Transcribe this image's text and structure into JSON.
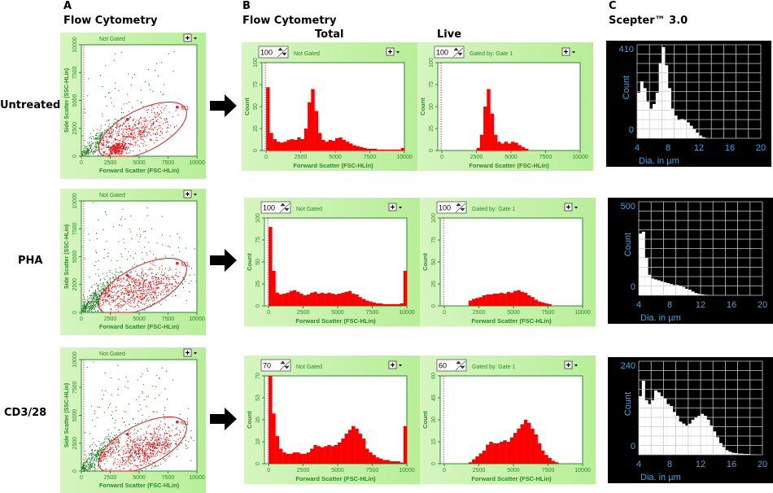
{
  "panel_labels": {
    "a": "A",
    "b": "B",
    "c": "C"
  },
  "headings": {
    "a": "Flow Cytometry",
    "b": "Flow Cytometry",
    "total": "Total",
    "live": "Live",
    "c": "Scepter™ 3.0"
  },
  "rows": [
    "Untreated",
    "PHA",
    "CD3/28"
  ],
  "colors": {
    "gated": "#e01010",
    "ungated": "#1a7a1a",
    "histogram": "#ff0000",
    "panel_bg": "#c8f2aa",
    "axis_text": "#2a8a2a",
    "scepter_text": "#3aa8e0",
    "scepter_bg": "#000000"
  },
  "chart_data": [
    {
      "type": "scatter",
      "row": "Untreated",
      "header": "Not Gated",
      "xlabel": "Forward Scatter (FSC-HLin)",
      "ylabel": "Side Scatter (SSC-HLin)",
      "xlim": [
        0,
        10000
      ],
      "ylim": [
        0,
        10000
      ],
      "xticks": [
        "0",
        "2500",
        "5000",
        "7500",
        "10000"
      ],
      "yticks": [
        "0",
        "2500",
        "5000",
        "7500",
        "10000"
      ],
      "gate": {
        "label": "M1",
        "cx": 5300,
        "cy": 2300,
        "rx": 4200,
        "ry": 1850,
        "angle_deg": 28
      },
      "clusters": [
        {
          "cx": 300,
          "cy": 300,
          "sx": 300,
          "sy": 250,
          "corr": 0.3,
          "n": 70
        },
        {
          "cx": 1400,
          "cy": 1300,
          "sx": 1000,
          "sy": 1000,
          "corr": 0.85,
          "n": 260
        },
        {
          "cx": 4000,
          "cy": 4500,
          "sx": 2500,
          "sy": 2500,
          "corr": 0.3,
          "n": 90
        },
        {
          "cx": 3000,
          "cy": 700,
          "sx": 500,
          "sy": 300,
          "corr": 0.4,
          "n": 320
        },
        {
          "cx": 4800,
          "cy": 2200,
          "sx": 1500,
          "sy": 900,
          "corr": 0.6,
          "n": 380
        }
      ]
    },
    {
      "type": "bar",
      "row": "Untreated",
      "column": "Total",
      "spin_value": "100",
      "header": "Not Gated",
      "xlabel": "Forward Scatter (FSC-HLin)",
      "ylabel": "Count",
      "xlim": [
        0,
        10000
      ],
      "ylim": [
        0,
        100
      ],
      "bin_width": 250,
      "xticks": [
        "0",
        "2500",
        "5000",
        "7500",
        "10000"
      ],
      "yticks": [
        "0",
        "25",
        "50",
        "75",
        "100"
      ],
      "values": [
        72,
        20,
        13,
        10,
        9,
        10,
        12,
        13,
        12,
        15,
        13,
        25,
        55,
        70,
        45,
        20,
        12,
        10,
        12,
        11,
        14,
        15,
        12,
        10,
        8,
        6,
        5,
        4,
        3,
        2,
        2,
        2,
        1,
        1,
        1,
        1,
        1,
        1,
        1,
        3
      ]
    },
    {
      "type": "bar",
      "row": "Untreated",
      "column": "Live",
      "spin_value": "100",
      "header": "Gated by: Gate 1",
      "xlabel": "Forward Scatter (FSC-HLin)",
      "ylabel": "Count",
      "xlim": [
        0,
        10000
      ],
      "ylim": [
        0,
        100
      ],
      "bin_width": 250,
      "xticks": [
        "0",
        "2500",
        "5000",
        "7500",
        "10000"
      ],
      "yticks": [
        "0",
        "25",
        "50",
        "75",
        "100"
      ],
      "values": [
        0,
        0,
        0,
        0,
        0,
        0,
        0,
        0,
        0,
        0,
        3,
        18,
        50,
        70,
        42,
        18,
        10,
        8,
        10,
        8,
        10,
        9,
        6,
        4,
        2,
        0,
        0,
        0,
        0,
        0,
        0,
        0,
        0,
        0,
        0,
        0,
        0,
        0,
        0,
        0
      ]
    },
    {
      "type": "bar",
      "row": "Untreated",
      "xlabel": "Dia. in µm",
      "ylabel": "Count",
      "xlim": [
        4,
        20
      ],
      "ylim": [
        0,
        410
      ],
      "bin_width": 0.4,
      "xticks": [
        "4",
        "8",
        "12",
        "16",
        "20"
      ],
      "yticks": [
        "0",
        "410"
      ],
      "values": [
        200,
        250,
        220,
        160,
        130,
        150,
        200,
        330,
        400,
        320,
        220,
        130,
        100,
        80,
        85,
        80,
        70,
        55,
        40,
        25,
        12,
        5,
        2,
        0,
        0,
        0,
        0,
        0,
        0,
        0,
        0,
        0,
        0,
        0,
        0,
        0,
        0,
        0,
        0,
        0
      ]
    },
    {
      "type": "scatter",
      "row": "PHA",
      "header": "Not Gated",
      "xlabel": "Forward Scatter (FSC-HLin)",
      "ylabel": "Side Scatter (SSC-HLin)",
      "xlim": [
        0,
        10000
      ],
      "ylim": [
        0,
        10000
      ],
      "xticks": [
        "0",
        "2500",
        "5000",
        "7500",
        "10000"
      ],
      "yticks": [
        "0",
        "2500",
        "5000",
        "7500",
        "10000"
      ],
      "gate": {
        "label": "M1",
        "cx": 5300,
        "cy": 2300,
        "rx": 4200,
        "ry": 1850,
        "angle_deg": 28
      },
      "clusters": [
        {
          "cx": 400,
          "cy": 400,
          "sx": 400,
          "sy": 350,
          "corr": 0.3,
          "n": 90
        },
        {
          "cx": 1300,
          "cy": 1300,
          "sx": 1000,
          "sy": 1000,
          "corr": 0.85,
          "n": 380
        },
        {
          "cx": 3500,
          "cy": 5000,
          "sx": 2800,
          "sy": 2800,
          "corr": 0.3,
          "n": 160
        },
        {
          "cx": 5000,
          "cy": 2000,
          "sx": 1800,
          "sy": 1000,
          "corr": 0.55,
          "n": 650
        }
      ]
    },
    {
      "type": "bar",
      "row": "PHA",
      "column": "Total",
      "spin_value": "100",
      "header": "Not Gated",
      "xlabel": "Forward Scatter (FSC-HLin)",
      "ylabel": "Count",
      "xlim": [
        0,
        10000
      ],
      "ylim": [
        0,
        100
      ],
      "bin_width": 250,
      "xticks": [
        "0",
        "2500",
        "5000",
        "7500",
        "10000"
      ],
      "yticks": [
        "0",
        "25",
        "50",
        "75",
        "100"
      ],
      "values": [
        90,
        40,
        15,
        13,
        14,
        15,
        17,
        18,
        16,
        14,
        12,
        13,
        15,
        16,
        14,
        15,
        14,
        15,
        14,
        13,
        14,
        15,
        16,
        17,
        14,
        13,
        10,
        8,
        6,
        5,
        4,
        3,
        3,
        2,
        2,
        2,
        2,
        2,
        3,
        40
      ]
    },
    {
      "type": "bar",
      "row": "PHA",
      "column": "Live",
      "spin_value": "100",
      "header": "Gated by: Gate 1",
      "xlabel": "Forward Scatter (FSC-HLin)",
      "ylabel": "Count",
      "xlim": [
        0,
        10000
      ],
      "ylim": [
        0,
        100
      ],
      "bin_width": 250,
      "xticks": [
        "0",
        "2500",
        "5000",
        "7500",
        "10000"
      ],
      "yticks": [
        "0",
        "25",
        "50",
        "75",
        "100"
      ],
      "values": [
        0,
        0,
        0,
        0,
        0,
        0,
        0,
        6,
        8,
        9,
        10,
        12,
        13,
        13,
        14,
        14,
        15,
        14,
        16,
        15,
        17,
        18,
        16,
        15,
        12,
        10,
        7,
        5,
        4,
        3,
        2,
        0,
        0,
        0,
        0,
        0,
        0,
        0,
        0,
        0
      ]
    },
    {
      "type": "bar",
      "row": "PHA",
      "xlabel": "Dia. in µm",
      "ylabel": "Count",
      "xlim": [
        4,
        20
      ],
      "ylim": [
        0,
        500
      ],
      "bin_width": 0.4,
      "xticks": [
        "4",
        "8",
        "12",
        "16",
        "20"
      ],
      "yticks": [
        "0",
        "500"
      ],
      "values": [
        330,
        340,
        200,
        110,
        90,
        85,
        80,
        75,
        70,
        65,
        60,
        55,
        55,
        50,
        45,
        35,
        30,
        20,
        12,
        8,
        5,
        3,
        2,
        0,
        0,
        0,
        0,
        0,
        0,
        0,
        0,
        0,
        0,
        0,
        0,
        0,
        0,
        0,
        0,
        0
      ]
    },
    {
      "type": "scatter",
      "row": "CD3/28",
      "header": "Not Gated",
      "xlabel": "Forward Scatter (FSC-HLin)",
      "ylabel": "Side Scatter (SSC-HLin)",
      "xlim": [
        0,
        10000
      ],
      "ylim": [
        0,
        10000
      ],
      "xticks": [
        "0",
        "2500",
        "5000",
        "7500",
        "10000"
      ],
      "yticks": [
        "0",
        "2500",
        "5000",
        "7500",
        "10000"
      ],
      "gate": {
        "label": "M1",
        "cx": 5300,
        "cy": 2300,
        "rx": 4200,
        "ry": 1850,
        "angle_deg": 28
      },
      "clusters": [
        {
          "cx": 400,
          "cy": 400,
          "sx": 400,
          "sy": 350,
          "corr": 0.3,
          "n": 90
        },
        {
          "cx": 1400,
          "cy": 1400,
          "sx": 1100,
          "sy": 1100,
          "corr": 0.85,
          "n": 380
        },
        {
          "cx": 4000,
          "cy": 5000,
          "sx": 2800,
          "sy": 2800,
          "corr": 0.3,
          "n": 150
        },
        {
          "cx": 5600,
          "cy": 2000,
          "sx": 1500,
          "sy": 900,
          "corr": 0.55,
          "n": 650
        }
      ]
    },
    {
      "type": "bar",
      "row": "CD3/28",
      "column": "Total",
      "spin_value": "70",
      "header": "Not Gated",
      "xlabel": "Forward Scatter (FSC-HLin)",
      "ylabel": "Count",
      "xlim": [
        0,
        10000
      ],
      "ylim": [
        0,
        70
      ],
      "bin_width": 250,
      "xticks": [
        "0",
        "2500",
        "5000",
        "7500",
        "10000"
      ],
      "yticks": [
        "0",
        "18",
        "35",
        "53",
        "70"
      ],
      "values": [
        70,
        40,
        22,
        12,
        9,
        8,
        8,
        9,
        9,
        8,
        8,
        9,
        12,
        15,
        14,
        13,
        14,
        15,
        14,
        15,
        17,
        20,
        24,
        27,
        30,
        28,
        24,
        20,
        12,
        9,
        7,
        5,
        4,
        3,
        3,
        2,
        2,
        2,
        1,
        30
      ]
    },
    {
      "type": "bar",
      "row": "CD3/28",
      "column": "Live",
      "spin_value": "60",
      "header": "Gated by: Gate 1",
      "xlabel": "Forward Scatter (FSC-HLin)",
      "ylabel": "Count",
      "xlim": [
        0,
        10000
      ],
      "ylim": [
        0,
        60
      ],
      "bin_width": 250,
      "xticks": [
        "0",
        "2500",
        "5000",
        "7500",
        "10000"
      ],
      "yticks": [
        "0",
        "15",
        "30",
        "45",
        "60"
      ],
      "values": [
        0,
        0,
        0,
        0,
        0,
        0,
        0,
        1,
        3,
        5,
        7,
        9,
        13,
        15,
        14,
        14,
        15,
        16,
        15,
        18,
        21,
        24,
        27,
        30,
        28,
        24,
        20,
        14,
        9,
        6,
        4,
        2,
        1,
        0,
        0,
        0,
        0,
        0,
        0,
        0
      ]
    },
    {
      "type": "bar",
      "row": "CD3/28",
      "xlabel": "Dia. in µm",
      "ylabel": "Count",
      "xlim": [
        4,
        20
      ],
      "ylim": [
        0,
        240
      ],
      "bin_width": 0.4,
      "xticks": [
        "4",
        "8",
        "12",
        "16",
        "20"
      ],
      "yticks": [
        "0",
        "240"
      ],
      "values": [
        150,
        190,
        140,
        130,
        140,
        165,
        160,
        150,
        145,
        130,
        125,
        110,
        100,
        85,
        80,
        75,
        80,
        90,
        95,
        100,
        105,
        100,
        90,
        75,
        60,
        45,
        30,
        20,
        12,
        8,
        5,
        4,
        3,
        3,
        2,
        2,
        1,
        1,
        0,
        0
      ]
    }
  ]
}
